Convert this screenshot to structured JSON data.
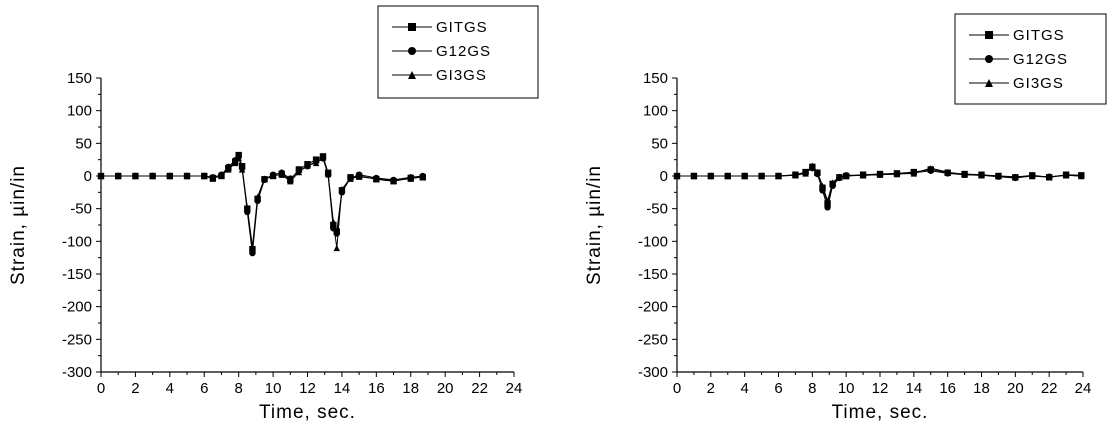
{
  "chart_data": [
    {
      "type": "line",
      "xlabel": "Time, sec.",
      "ylabel": "Strain, µin/in",
      "xlim": [
        0,
        24
      ],
      "ylim": [
        -300,
        150
      ],
      "xticks": [
        0,
        2,
        4,
        6,
        8,
        10,
        12,
        14,
        16,
        18,
        20,
        22,
        24
      ],
      "yticks": [
        150,
        100,
        50,
        0,
        -50,
        -100,
        -150,
        -200,
        -250,
        -300
      ],
      "grid": false,
      "legend_position": "top-right",
      "series": [
        {
          "name": "GITGS",
          "marker": "square",
          "x": [
            0,
            1,
            2,
            3,
            4,
            5,
            6,
            6.5,
            7,
            7.4,
            7.8,
            8.0,
            8.2,
            8.5,
            8.8,
            9.1,
            9.5,
            10,
            10.5,
            11,
            11.5,
            12,
            12.5,
            12.9,
            13.2,
            13.5,
            13.7,
            14.0,
            14.5,
            15,
            16,
            17,
            18,
            18.7
          ],
          "values": [
            0,
            0,
            0,
            0,
            0,
            0,
            0,
            -3,
            0,
            12,
            22,
            32,
            15,
            -50,
            -112,
            -35,
            -5,
            0,
            3,
            -6,
            10,
            18,
            25,
            30,
            5,
            -75,
            -85,
            -22,
            -2,
            0,
            -5,
            -8,
            -3,
            -2
          ]
        },
        {
          "name": "G12GS",
          "marker": "circle",
          "x": [
            0,
            1,
            2,
            3,
            4,
            5,
            6,
            6.5,
            7,
            7.4,
            7.8,
            8.0,
            8.2,
            8.5,
            8.8,
            9.1,
            9.5,
            10,
            10.5,
            11,
            11.5,
            12,
            12.5,
            12.9,
            13.2,
            13.5,
            13.7,
            14.0,
            14.5,
            15,
            16,
            17,
            18,
            18.7
          ],
          "values": [
            0,
            0,
            0,
            0,
            0,
            0,
            0,
            -2,
            2,
            14,
            24,
            30,
            12,
            -55,
            -118,
            -38,
            -6,
            2,
            5,
            -4,
            8,
            15,
            22,
            27,
            2,
            -80,
            -88,
            -25,
            -3,
            2,
            -3,
            -6,
            -2,
            0
          ]
        },
        {
          "name": "GI3GS",
          "marker": "triangle",
          "x": [
            0,
            1,
            2,
            3,
            4,
            5,
            6,
            6.5,
            7,
            7.4,
            7.8,
            8.0,
            8.2,
            8.5,
            8.8,
            9.1,
            9.5,
            10,
            10.5,
            11,
            11.5,
            12,
            12.5,
            12.9,
            13.2,
            13.5,
            13.7,
            14.0,
            14.5,
            15,
            16,
            17,
            18,
            18.7
          ],
          "values": [
            0,
            0,
            0,
            0,
            0,
            0,
            0,
            -4,
            1,
            10,
            20,
            28,
            10,
            -48,
            -108,
            -32,
            -4,
            1,
            2,
            -8,
            6,
            16,
            20,
            28,
            3,
            -70,
            -110,
            -20,
            -4,
            -1,
            -4,
            -7,
            -4,
            -1
          ]
        }
      ]
    },
    {
      "type": "line",
      "xlabel": "Time, sec.",
      "ylabel": "Strain, µin/in",
      "xlim": [
        0,
        24
      ],
      "ylim": [
        -300,
        150
      ],
      "xticks": [
        0,
        2,
        4,
        6,
        8,
        10,
        12,
        14,
        16,
        18,
        20,
        22,
        24
      ],
      "yticks": [
        150,
        100,
        50,
        0,
        -50,
        -100,
        -150,
        -200,
        -250,
        -300
      ],
      "grid": false,
      "legend_position": "top-right",
      "series": [
        {
          "name": "GITGS",
          "marker": "square",
          "x": [
            0,
            1,
            2,
            3,
            4,
            5,
            6,
            7,
            7.6,
            8.0,
            8.3,
            8.6,
            8.9,
            9.2,
            9.6,
            10,
            11,
            12,
            13,
            14,
            15,
            16,
            17,
            18,
            19,
            20,
            21,
            22,
            23,
            23.9
          ],
          "values": [
            0,
            0,
            0,
            0,
            0,
            0,
            0,
            2,
            6,
            14,
            5,
            -18,
            -42,
            -12,
            -2,
            0,
            2,
            3,
            4,
            6,
            10,
            5,
            3,
            2,
            0,
            -2,
            1,
            -2,
            2,
            1
          ]
        },
        {
          "name": "G12GS",
          "marker": "circle",
          "x": [
            0,
            1,
            2,
            3,
            4,
            5,
            6,
            7,
            7.6,
            8.0,
            8.3,
            8.6,
            8.9,
            9.2,
            9.6,
            10,
            11,
            12,
            13,
            14,
            15,
            16,
            17,
            18,
            19,
            20,
            21,
            22,
            23,
            23.9
          ],
          "values": [
            0,
            0,
            0,
            0,
            0,
            0,
            0,
            1,
            5,
            12,
            3,
            -22,
            -48,
            -15,
            -3,
            1,
            1,
            2,
            3,
            5,
            8,
            4,
            2,
            1,
            -1,
            -3,
            0,
            -1,
            1,
            0
          ]
        },
        {
          "name": "GI3GS",
          "marker": "triangle",
          "x": [
            0,
            1,
            2,
            3,
            4,
            5,
            6,
            7,
            7.6,
            8.0,
            8.3,
            8.6,
            8.9,
            9.2,
            9.6,
            10,
            11,
            12,
            13,
            14,
            15,
            16,
            17,
            18,
            19,
            20,
            21,
            22,
            23,
            23.9
          ],
          "values": [
            0,
            0,
            0,
            0,
            0,
            0,
            0,
            1,
            4,
            16,
            6,
            -15,
            -38,
            -10,
            -1,
            0,
            1,
            2,
            3,
            4,
            12,
            6,
            2,
            1,
            0,
            -1,
            0,
            -2,
            1,
            0
          ]
        }
      ]
    }
  ]
}
